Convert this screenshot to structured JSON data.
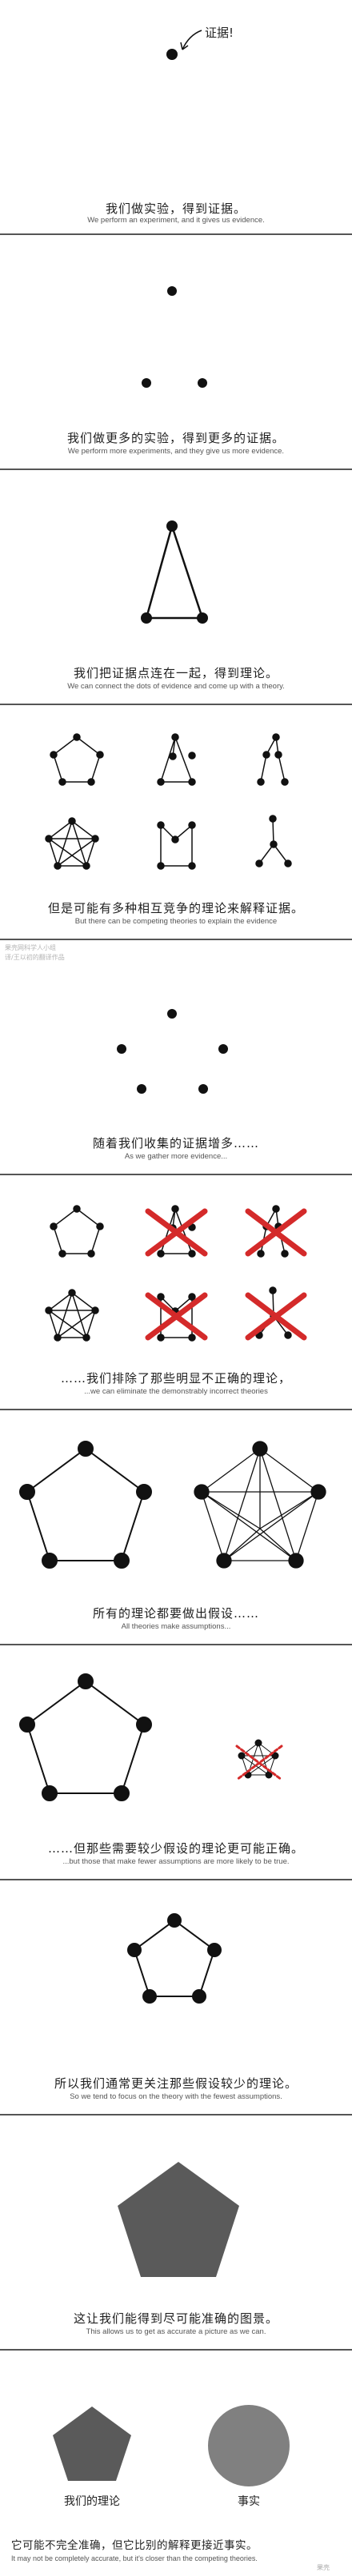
{
  "panels": [
    {
      "cn": "我们做实验，得到证据。",
      "en": "We perform an experiment, and it gives us evidence.",
      "note": "证据!"
    },
    {
      "cn": "我们做更多的实验，得到更多的证据。",
      "en": "We perform more experiments, and they give us more evidence."
    },
    {
      "cn": "我们把证据点连在一起，得到理论。",
      "en": "We can connect the dots of evidence and come up with a theory."
    },
    {
      "cn": "但是可能有多种相互竞争的理论来解释证据。",
      "en": "But there can be competing theories to explain the evidence"
    },
    {
      "cn": "随着我们收集的证据增多……",
      "en": "As we gather more evidence...",
      "watermark": [
        "果壳网科学人小组",
        "译/王以初的翻译作品"
      ]
    },
    {
      "cn": "……我们排除了那些明显不正确的理论，",
      "en": "...we can eliminate the demonstrably incorrect theories"
    },
    {
      "cn": "所有的理论都要做出假设……",
      "en": "All theories make assumptions..."
    },
    {
      "cn": "……但那些需要较少假设的理论更可能正确。",
      "en": "...but those that make fewer assumptions are more likely to be true."
    },
    {
      "cn": "所以我们通常更关注那些假设较少的理论。",
      "en": "So we tend to focus on the theory with the fewest assumptions."
    },
    {
      "cn": "这让我们能得到尽可能准确的图景。",
      "en": "This allows us to get as accurate a picture as we can."
    },
    {
      "cn": "它可能不完全准确，但它比别的解释更接近事实。",
      "en": "It may not be completely accurate, but it's closer than the competing theories.",
      "label_left": "我们的理论",
      "label_right": "事实",
      "corner_mark": "果壳"
    }
  ],
  "colors": {
    "ink": "#111111",
    "eliminate": "#d42a2a",
    "assumption_mark": "#d42a2a",
    "theory_fill": "#5a5a5a",
    "truth_fill": "#808080",
    "rule": "#555555"
  }
}
